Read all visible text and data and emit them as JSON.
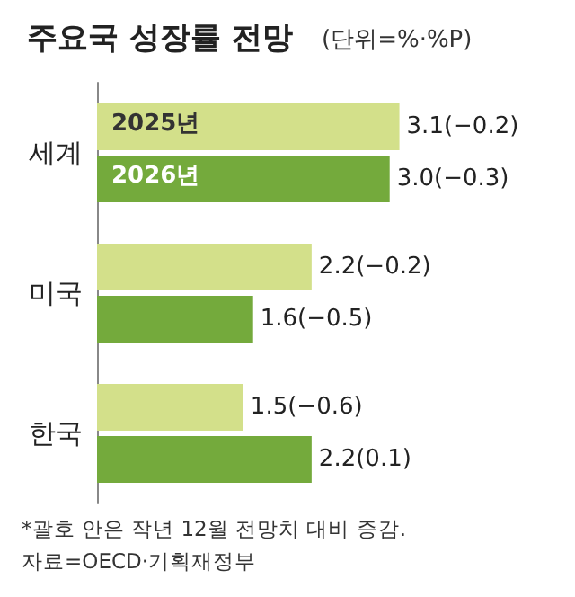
{
  "chart_data": {
    "type": "bar",
    "orientation": "horizontal",
    "title": "주요국 성장률 전망",
    "subtitle": "(단위=%·%P)",
    "categories": [
      "세계",
      "미국",
      "한국"
    ],
    "series": [
      {
        "name": "2025년",
        "color": "#d3e08a",
        "values": [
          3.1,
          2.2,
          1.5
        ],
        "value_labels": [
          "3.1(−0.2)",
          "2.2(−0.2)",
          "1.5(−0.6)"
        ]
      },
      {
        "name": "2026년",
        "color": "#74aa3c",
        "values": [
          3.0,
          1.6,
          2.2
        ],
        "value_labels": [
          "3.0(−0.3)",
          "1.6(−0.5)",
          "2.2(0.1)"
        ]
      }
    ],
    "annotations": [
      "*괄호 안은 작년 12월 전망치 대비 증감.",
      "자료=OECD·기획재정부"
    ],
    "legend": false,
    "grid": false
  }
}
